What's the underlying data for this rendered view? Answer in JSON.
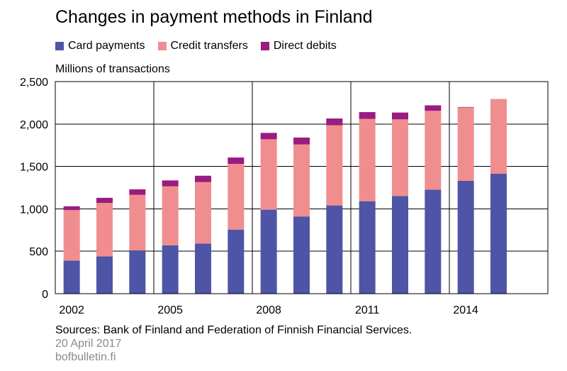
{
  "chart_data": {
    "type": "bar",
    "stacked": true,
    "title": "Changes in payment methods in Finland",
    "ylabel": "Millions of transactions",
    "xlabel": "",
    "ylim": [
      0,
      2500
    ],
    "yticks": [
      0,
      500,
      1000,
      1500,
      2000,
      2500
    ],
    "ytick_labels": [
      "0",
      "500",
      "1,000",
      "1,500",
      "2,000",
      "2,500"
    ],
    "categories": [
      "2002",
      "2003",
      "2004",
      "2005",
      "2006",
      "2007",
      "2008",
      "2009",
      "2010",
      "2011",
      "2012",
      "2013",
      "2014",
      "2015"
    ],
    "xtick_labels": [
      "2002",
      "",
      "",
      "2005",
      "",
      "",
      "2008",
      "",
      "",
      "2011",
      "",
      "",
      "2014",
      ""
    ],
    "series": [
      {
        "name": "Card payments",
        "color": "#4e54a6",
        "values": [
          390,
          440,
          510,
          570,
          590,
          755,
          990,
          910,
          1040,
          1090,
          1150,
          1225,
          1330,
          1415
        ]
      },
      {
        "name": "Credit transfers",
        "color": "#f08e8f",
        "values": [
          595,
          630,
          655,
          695,
          725,
          775,
          830,
          850,
          945,
          970,
          905,
          930,
          865,
          880
        ]
      },
      {
        "name": "Direct debits",
        "color": "#9b1b80",
        "values": [
          45,
          60,
          65,
          70,
          75,
          75,
          75,
          80,
          80,
          80,
          80,
          65,
          5,
          0
        ]
      }
    ],
    "grid": true,
    "legend_position": "top"
  },
  "footer": {
    "sources": "Sources: Bank of Finland and Federation of Finnish Financial Services.",
    "date": "20 April 2017",
    "site": "bofbulletin.fi"
  }
}
